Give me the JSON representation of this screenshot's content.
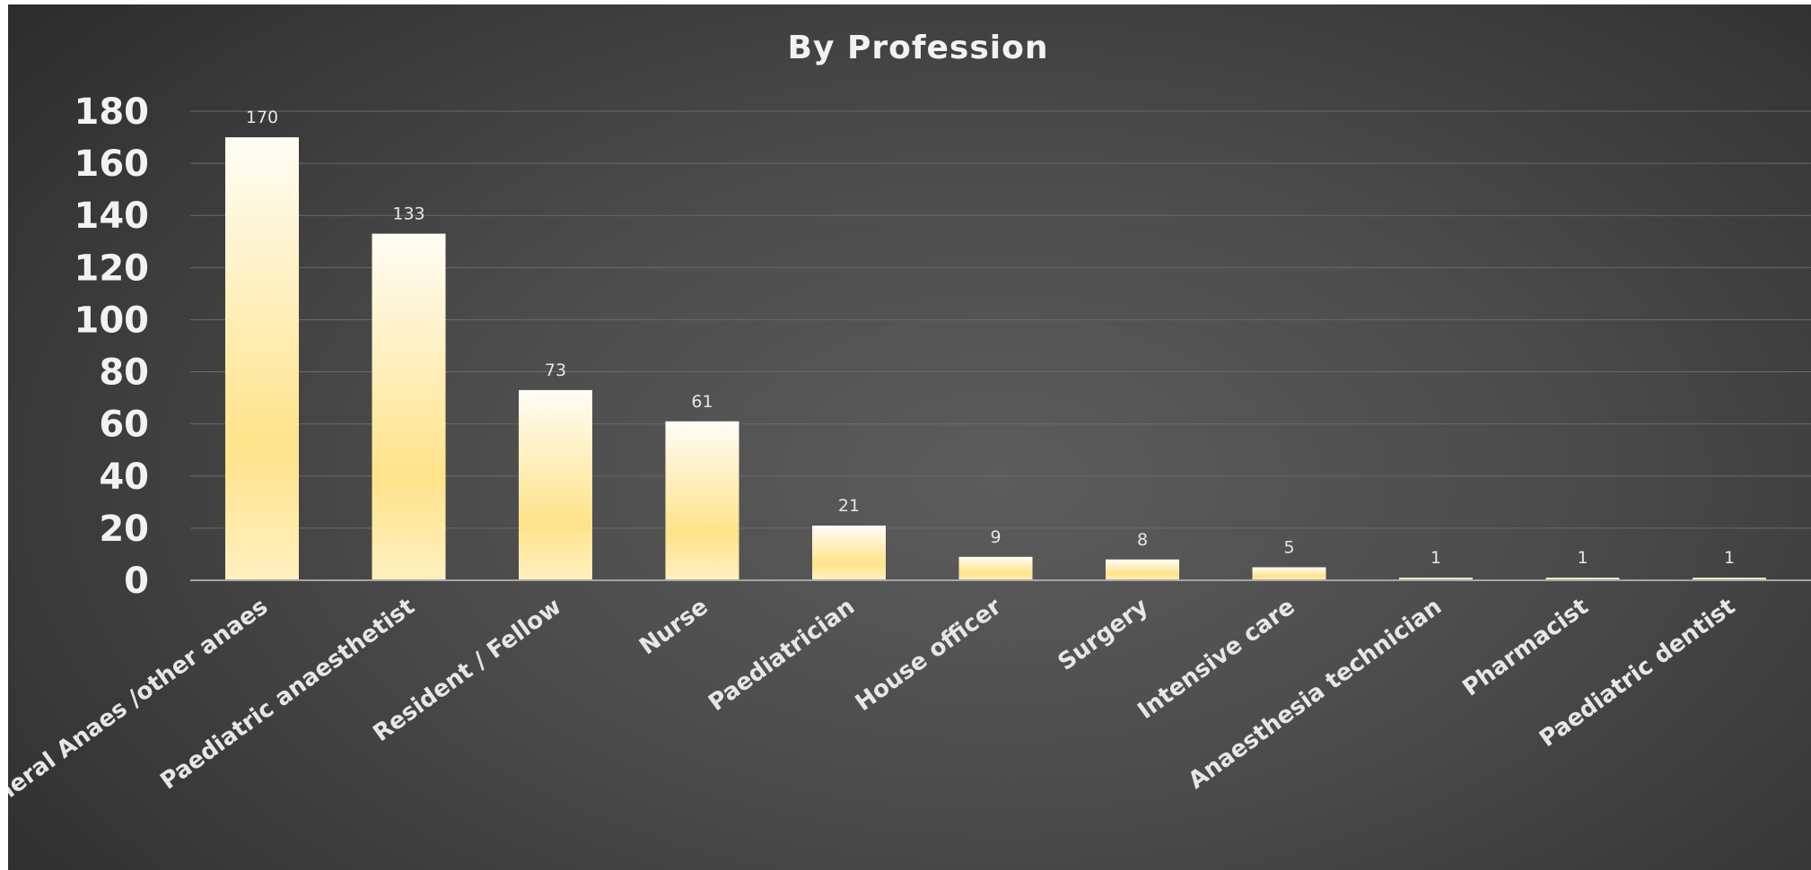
{
  "chart_data": {
    "type": "bar",
    "title": "By Profession",
    "categories": [
      "General Anaes /other anaes",
      "Paediatric anaesthetist",
      "Resident / Fellow",
      "Nurse",
      "Paediatrician",
      "House officer",
      "Surgery",
      "Intensive care",
      "Anaesthesia technician",
      "Pharmacist",
      "Paediatric dentist"
    ],
    "values": [
      170,
      133,
      73,
      61,
      21,
      9,
      8,
      5,
      1,
      1,
      1
    ],
    "data_labels": [
      "170",
      "133",
      "73",
      "61",
      "21",
      "9",
      "8",
      "5",
      "1",
      "1",
      "1"
    ],
    "y_ticks": [
      "0",
      "20",
      "40",
      "60",
      "80",
      "100",
      "120",
      "140",
      "160",
      "180"
    ],
    "ylim": [
      0,
      180
    ],
    "grid": true,
    "legend": "none",
    "bar_color_top": "#fffdf5",
    "bar_color_bottom": "#ffe38a",
    "background_color": "#4a4a4a"
  }
}
